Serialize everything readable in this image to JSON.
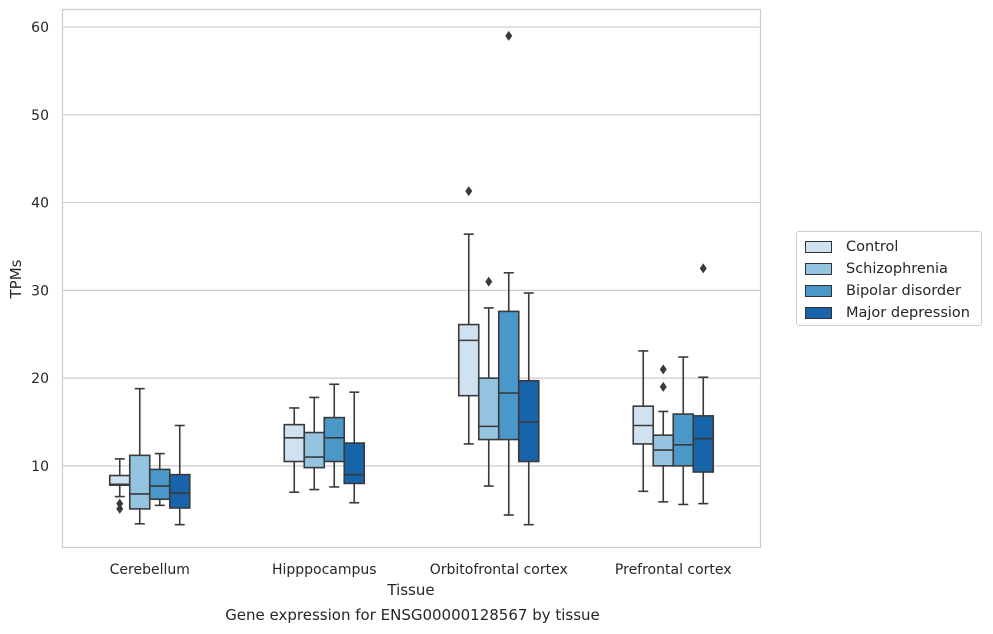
{
  "caption": "Gene expression for ENSG00000128567 by tissue",
  "colors": {
    "Control": "#d0e1f2",
    "Schizophrenia": "#94c4df",
    "Bipolar disorder": "#4a98c9",
    "Major depression": "#1764ab",
    "box_edge": "#3a3a3a",
    "grid": "#cccccc",
    "frame": "#cccccc"
  },
  "legend": {
    "items": [
      "Control",
      "Schizophrenia",
      "Bipolar disorder",
      "Major depression"
    ],
    "placement": "outside-right"
  },
  "chart_data": {
    "type": "box",
    "xlabel": "Tissue",
    "ylabel": "TPMs",
    "categories": [
      "Cerebellum",
      "Hipppocampus",
      "Orbitofrontal cortex",
      "Prefrontal cortex"
    ],
    "ylim": [
      0.7,
      62
    ],
    "yticks": [
      10,
      20,
      30,
      40,
      50,
      60
    ],
    "grid": "horizontal",
    "series": [
      {
        "name": "Control",
        "boxes": [
          {
            "whislo": 6.5,
            "q1": 7.8,
            "med": 7.9,
            "q3": 8.9,
            "whishi": 10.8,
            "fliers": [
              5.1,
              5.7
            ]
          },
          {
            "whislo": 7.0,
            "q1": 10.5,
            "med": 13.2,
            "q3": 14.7,
            "whishi": 16.6,
            "fliers": []
          },
          {
            "whislo": 12.5,
            "q1": 18.0,
            "med": 24.3,
            "q3": 26.1,
            "whishi": 36.4,
            "fliers": [
              41.3
            ]
          },
          {
            "whislo": 7.1,
            "q1": 12.5,
            "med": 14.6,
            "q3": 16.8,
            "whishi": 23.1,
            "fliers": []
          }
        ]
      },
      {
        "name": "Schizophrenia",
        "boxes": [
          {
            "whislo": 3.4,
            "q1": 5.1,
            "med": 6.8,
            "q3": 11.2,
            "whishi": 18.8,
            "fliers": []
          },
          {
            "whislo": 7.3,
            "q1": 9.8,
            "med": 11.0,
            "q3": 13.8,
            "whishi": 17.8,
            "fliers": []
          },
          {
            "whislo": 7.7,
            "q1": 13.0,
            "med": 14.5,
            "q3": 20.0,
            "whishi": 28.0,
            "fliers": [
              31.0
            ]
          },
          {
            "whislo": 5.9,
            "q1": 10.0,
            "med": 11.8,
            "q3": 13.5,
            "whishi": 16.2,
            "fliers": [
              19.0,
              21.0
            ]
          }
        ]
      },
      {
        "name": "Bipolar disorder",
        "boxes": [
          {
            "whislo": 5.5,
            "q1": 6.2,
            "med": 7.7,
            "q3": 9.6,
            "whishi": 11.4,
            "fliers": []
          },
          {
            "whislo": 7.6,
            "q1": 10.5,
            "med": 13.2,
            "q3": 15.5,
            "whishi": 19.3,
            "fliers": []
          },
          {
            "whislo": 4.4,
            "q1": 13.0,
            "med": 18.3,
            "q3": 27.6,
            "whishi": 32.0,
            "fliers": [
              59.0
            ]
          },
          {
            "whislo": 5.6,
            "q1": 10.0,
            "med": 12.4,
            "q3": 15.9,
            "whishi": 22.4,
            "fliers": []
          }
        ]
      },
      {
        "name": "Major depression",
        "boxes": [
          {
            "whislo": 3.3,
            "q1": 5.2,
            "med": 6.9,
            "q3": 9.0,
            "whishi": 14.6,
            "fliers": []
          },
          {
            "whislo": 5.8,
            "q1": 8.0,
            "med": 9.0,
            "q3": 12.6,
            "whishi": 18.4,
            "fliers": []
          },
          {
            "whislo": 3.3,
            "q1": 10.5,
            "med": 15.0,
            "q3": 19.7,
            "whishi": 29.7,
            "fliers": []
          },
          {
            "whislo": 5.7,
            "q1": 9.3,
            "med": 13.1,
            "q3": 15.7,
            "whishi": 20.1,
            "fliers": [
              32.5
            ]
          }
        ]
      }
    ]
  }
}
